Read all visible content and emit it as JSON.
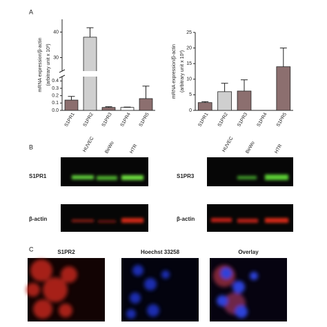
{
  "panel_labels": [
    "A",
    "B",
    "C"
  ],
  "chart_data": [
    {
      "type": "bar",
      "ylabel": [
        "mRNA expression/β-actin",
        "(arbitrary unit x 10³)"
      ],
      "categories": [
        "S1PR1",
        "S1PR2",
        "S1PR3",
        "S1PR4",
        "S1PR5"
      ],
      "values": [
        0.14,
        38,
        0.04,
        0.04,
        0.16
      ],
      "errors": [
        0.05,
        3.7,
        0.01,
        0.005,
        0.17
      ],
      "colors": [
        "#8c6f6f",
        "#cfcfcf",
        "#8c6f6f",
        "#ffffff",
        "#8c6f6f"
      ],
      "ylim": [
        0,
        45
      ],
      "y_break": [
        0.45,
        25
      ],
      "yticks": [
        {
          "value": 0,
          "label": "0.0"
        },
        0.1,
        0.2,
        0.3,
        0.4,
        30,
        40
      ]
    },
    {
      "type": "bar",
      "ylabel": [
        "mRNA expression/β-actin",
        "(arbitrary unit x 10³)"
      ],
      "categories": [
        "S1PR1",
        "S1PR2",
        "S1PR3",
        "S1PR4",
        "S1PR5"
      ],
      "values": [
        2.5,
        6,
        6.2,
        0,
        14
      ],
      "errors": [
        0.3,
        2.7,
        3.6,
        0,
        6
      ],
      "colors": [
        "#8c6f6f",
        "#cfcfcf",
        "#8c6f6f",
        "#8c6f6f",
        "#8c6f6f"
      ],
      "ylim": [
        0,
        25
      ],
      "yticks": [
        0,
        5,
        10,
        15,
        20,
        25
      ]
    }
  ],
  "blots": {
    "lanes": [
      "HUVEC",
      "BeWo",
      "HTR"
    ],
    "left_rows": [
      "S1PR1",
      "β-actin"
    ],
    "right_rows": [
      "S1PR3",
      "β-actin"
    ]
  },
  "images": {
    "titles": [
      "S1PR2",
      "Hoechst 33258",
      "Overlay"
    ]
  }
}
